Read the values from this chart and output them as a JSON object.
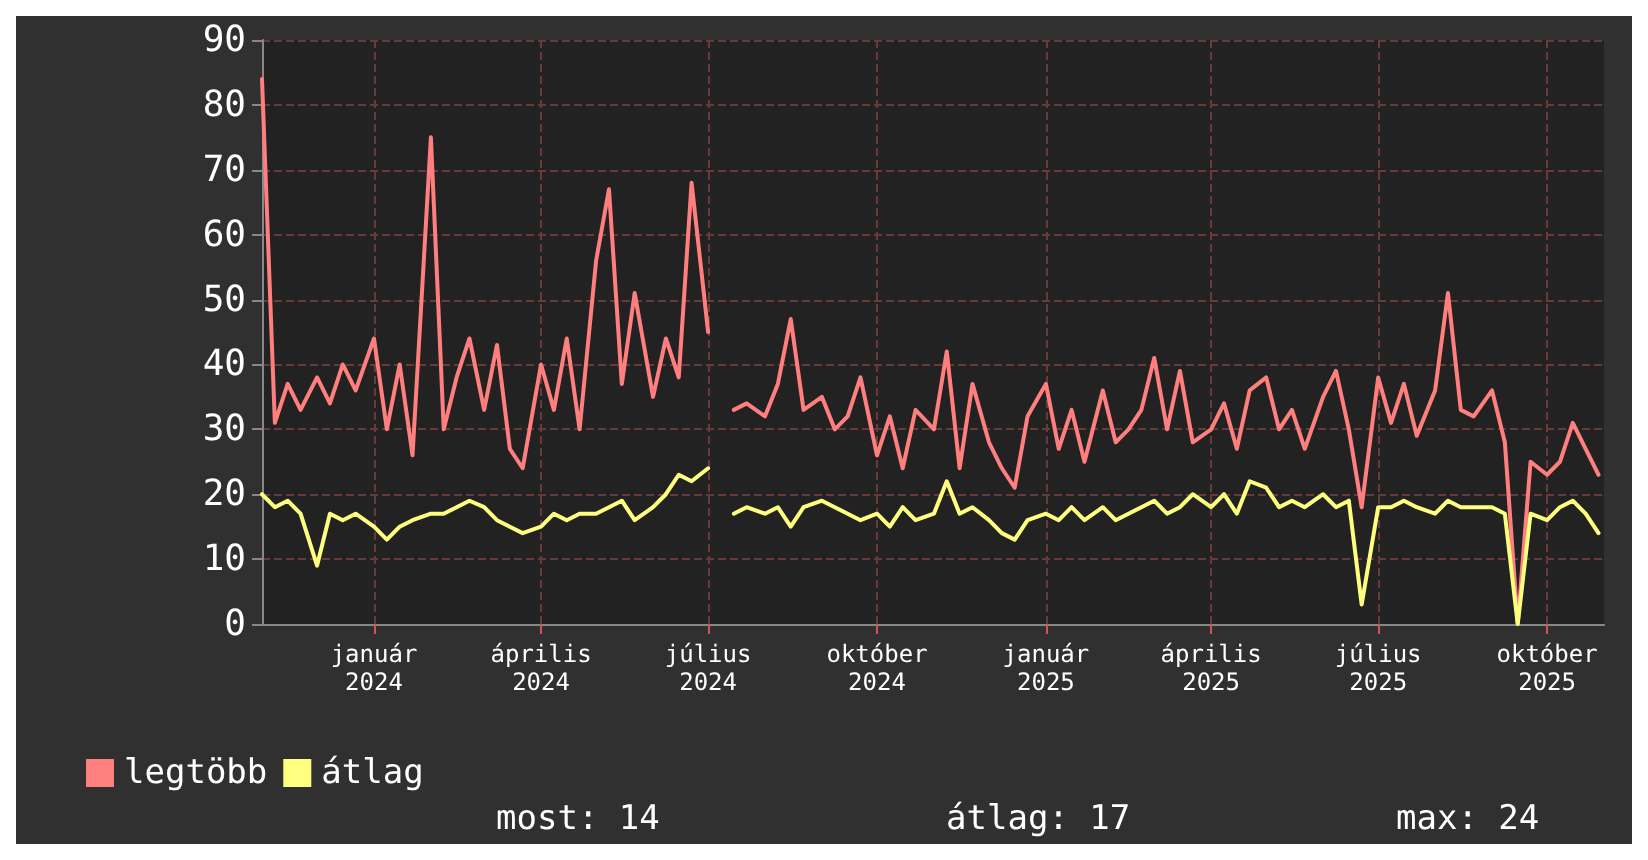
{
  "chart_data": {
    "type": "line",
    "x": [
      "2023-11-01",
      "2023-11-08",
      "2023-11-15",
      "2023-11-22",
      "2023-12-01",
      "2023-12-08",
      "2023-12-15",
      "2023-12-22",
      "2024-01-01",
      "2024-01-08",
      "2024-01-15",
      "2024-01-22",
      "2024-02-01",
      "2024-02-08",
      "2024-02-15",
      "2024-02-22",
      "2024-03-01",
      "2024-03-08",
      "2024-03-15",
      "2024-03-22",
      "2024-04-01",
      "2024-04-08",
      "2024-04-15",
      "2024-04-22",
      "2024-05-01",
      "2024-05-08",
      "2024-05-15",
      "2024-05-22",
      "2024-06-01",
      "2024-06-08",
      "2024-06-15",
      "2024-06-22",
      "2024-07-01",
      "2024-07-08",
      "2024-07-15",
      "2024-07-22",
      "2024-08-01",
      "2024-08-08",
      "2024-08-15",
      "2024-08-22",
      "2024-09-01",
      "2024-09-08",
      "2024-09-15",
      "2024-09-22",
      "2024-10-01",
      "2024-10-08",
      "2024-10-15",
      "2024-10-22",
      "2024-11-01",
      "2024-11-08",
      "2024-11-15",
      "2024-11-22",
      "2024-12-01",
      "2024-12-08",
      "2024-12-15",
      "2024-12-22",
      "2025-01-01",
      "2025-01-08",
      "2025-01-15",
      "2025-01-22",
      "2025-02-01",
      "2025-02-08",
      "2025-02-15",
      "2025-02-22",
      "2025-03-01",
      "2025-03-08",
      "2025-03-15",
      "2025-03-22",
      "2025-04-01",
      "2025-04-08",
      "2025-04-15",
      "2025-04-22",
      "2025-05-01",
      "2025-05-08",
      "2025-05-15",
      "2025-05-22",
      "2025-06-01",
      "2025-06-08",
      "2025-06-15",
      "2025-06-22",
      "2025-07-01",
      "2025-07-08",
      "2025-07-15",
      "2025-07-22",
      "2025-08-01",
      "2025-08-08",
      "2025-08-15",
      "2025-08-22",
      "2025-09-01",
      "2025-09-08",
      "2025-09-15",
      "2025-09-22",
      "2025-10-01",
      "2025-10-08",
      "2025-10-15",
      "2025-10-22",
      "2025-10-29"
    ],
    "series": [
      {
        "name": "legtöbb",
        "color": "#ff7f7f",
        "values": [
          84,
          31,
          37,
          33,
          38,
          34,
          40,
          36,
          44,
          30,
          40,
          26,
          75,
          30,
          38,
          44,
          33,
          43,
          27,
          24,
          40,
          33,
          44,
          30,
          56,
          67,
          37,
          51,
          35,
          44,
          38,
          68,
          45,
          null,
          33,
          34,
          32,
          37,
          47,
          33,
          35,
          30,
          32,
          38,
          26,
          32,
          24,
          33,
          30,
          42,
          24,
          37,
          28,
          24,
          21,
          32,
          37,
          27,
          33,
          25,
          36,
          28,
          30,
          33,
          41,
          30,
          39,
          28,
          30,
          34,
          27,
          36,
          38,
          30,
          33,
          27,
          35,
          39,
          30,
          18,
          38,
          31,
          37,
          29,
          36,
          51,
          33,
          32,
          36,
          28,
          0,
          25,
          23,
          25,
          31,
          27,
          23
        ]
      },
      {
        "name": "átlag",
        "color": "#ffff7f",
        "values": [
          20,
          18,
          19,
          17,
          9,
          17,
          16,
          17,
          15,
          13,
          15,
          16,
          17,
          17,
          18,
          19,
          18,
          16,
          15,
          14,
          15,
          17,
          16,
          17,
          17,
          18,
          19,
          16,
          18,
          20,
          23,
          22,
          24,
          null,
          17,
          18,
          17,
          18,
          15,
          18,
          19,
          18,
          17,
          16,
          17,
          15,
          18,
          16,
          17,
          22,
          17,
          18,
          16,
          14,
          13,
          16,
          17,
          16,
          18,
          16,
          18,
          16,
          17,
          18,
          19,
          17,
          18,
          20,
          18,
          20,
          17,
          22,
          21,
          18,
          19,
          18,
          20,
          18,
          19,
          3,
          18,
          18,
          19,
          18,
          17,
          19,
          18,
          18,
          18,
          17,
          0,
          17,
          16,
          18,
          19,
          17,
          14
        ]
      }
    ],
    "xlim": [
      "2023-11-01",
      "2025-11-01"
    ],
    "xticks": [
      {
        "value": "2024-01-01",
        "label": "január 2024"
      },
      {
        "value": "2024-04-01",
        "label": "április 2024"
      },
      {
        "value": "2024-07-01",
        "label": "július 2024"
      },
      {
        "value": "2024-10-01",
        "label": "október 2024"
      },
      {
        "value": "2025-01-01",
        "label": "január 2025"
      },
      {
        "value": "2025-04-01",
        "label": "április 2025"
      },
      {
        "value": "2025-07-01",
        "label": "július 2025"
      },
      {
        "value": "2025-10-01",
        "label": "október 2025"
      }
    ],
    "ylim": [
      0,
      90
    ],
    "yticks": [
      0,
      10,
      20,
      30,
      40,
      50,
      60,
      70,
      80,
      90
    ],
    "grid": true,
    "legend": "bottom",
    "marker": "none",
    "line_style": "solid",
    "annotations": [
      "most: 14",
      "átlag: 17",
      "max: 24"
    ]
  }
}
